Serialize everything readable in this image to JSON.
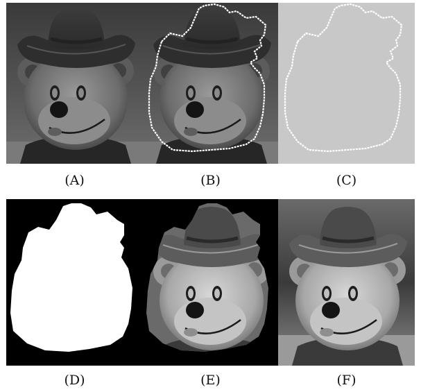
{
  "figure": {
    "panels": [
      {
        "id": "A",
        "caption": "(A)",
        "content": "original-grayscale-photo"
      },
      {
        "id": "B",
        "caption": "(B)",
        "content": "photo-with-contour-overlay"
      },
      {
        "id": "C",
        "caption": "(C)",
        "content": "contour-only-on-gray"
      },
      {
        "id": "D",
        "caption": "(D)",
        "content": "binary-mask"
      },
      {
        "id": "E",
        "caption": "(E)",
        "content": "segmented-object-on-black"
      },
      {
        "id": "F",
        "caption": "(F)",
        "content": "enhanced-photo"
      }
    ]
  },
  "colors": {
    "background": "#ffffff",
    "contour": "#ffffff",
    "contour_canvas": "#c8c8c8",
    "mask_fg": "#ffffff",
    "mask_bg": "#000000"
  }
}
